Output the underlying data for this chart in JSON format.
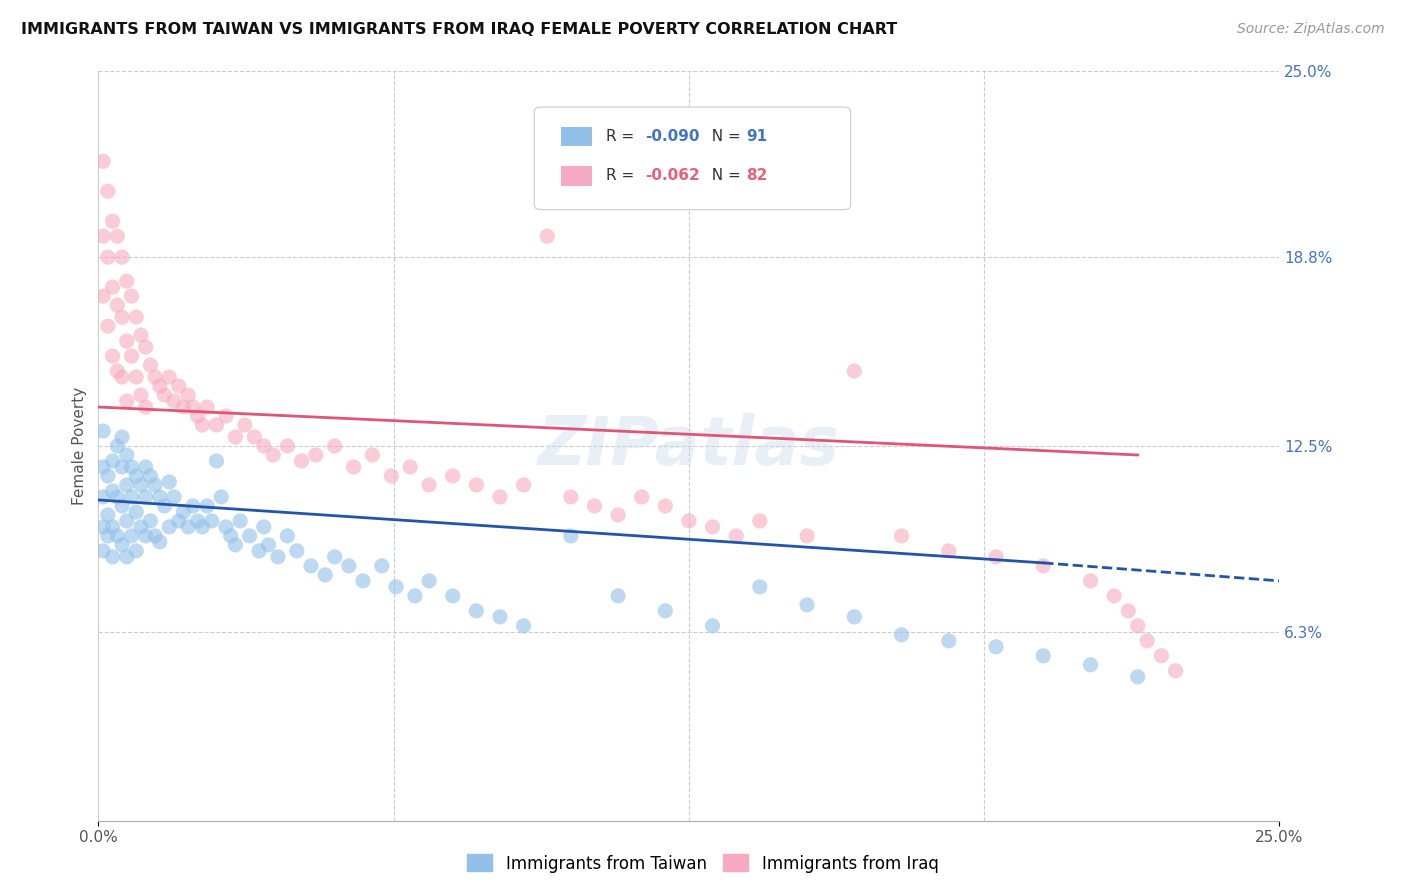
{
  "title": "IMMIGRANTS FROM TAIWAN VS IMMIGRANTS FROM IRAQ FEMALE POVERTY CORRELATION CHART",
  "source": "Source: ZipAtlas.com",
  "ylabel": "Female Poverty",
  "xlim": [
    0.0,
    0.25
  ],
  "ylim": [
    0.0,
    0.25
  ],
  "ytick_labels_right": [
    "25.0%",
    "18.8%",
    "12.5%",
    "6.3%"
  ],
  "ytick_values_right": [
    0.25,
    0.188,
    0.125,
    0.063
  ],
  "taiwan_color": "#92c0e8",
  "iraq_color": "#f5aabf",
  "taiwan_line_color": "#2255aa",
  "iraq_line_color": "#e05575",
  "taiwan_R": -0.09,
  "taiwan_N": 91,
  "iraq_R": -0.062,
  "iraq_N": 82,
  "taiwan_line_x0": 0.0,
  "taiwan_line_y0": 0.107,
  "taiwan_line_x1": 0.2,
  "taiwan_line_y1": 0.086,
  "taiwan_line_dash_x0": 0.2,
  "taiwan_line_dash_y0": 0.086,
  "taiwan_line_dash_x1": 0.25,
  "taiwan_line_dash_y1": 0.08,
  "iraq_line_x0": 0.0,
  "iraq_line_y0": 0.138,
  "iraq_line_x1": 0.22,
  "iraq_line_y1": 0.122,
  "taiwan_x": [
    0.001,
    0.001,
    0.001,
    0.001,
    0.001,
    0.002,
    0.002,
    0.002,
    0.003,
    0.003,
    0.003,
    0.003,
    0.004,
    0.004,
    0.004,
    0.005,
    0.005,
    0.005,
    0.005,
    0.006,
    0.006,
    0.006,
    0.006,
    0.007,
    0.007,
    0.007,
    0.008,
    0.008,
    0.008,
    0.009,
    0.009,
    0.01,
    0.01,
    0.01,
    0.011,
    0.011,
    0.012,
    0.012,
    0.013,
    0.013,
    0.014,
    0.015,
    0.015,
    0.016,
    0.017,
    0.018,
    0.019,
    0.02,
    0.021,
    0.022,
    0.023,
    0.024,
    0.025,
    0.026,
    0.027,
    0.028,
    0.029,
    0.03,
    0.032,
    0.034,
    0.035,
    0.036,
    0.038,
    0.04,
    0.042,
    0.045,
    0.048,
    0.05,
    0.053,
    0.056,
    0.06,
    0.063,
    0.067,
    0.07,
    0.075,
    0.08,
    0.085,
    0.09,
    0.1,
    0.11,
    0.12,
    0.13,
    0.14,
    0.15,
    0.16,
    0.17,
    0.18,
    0.19,
    0.2,
    0.21,
    0.22
  ],
  "taiwan_y": [
    0.118,
    0.108,
    0.098,
    0.09,
    0.13,
    0.115,
    0.102,
    0.095,
    0.12,
    0.11,
    0.098,
    0.088,
    0.125,
    0.108,
    0.095,
    0.128,
    0.118,
    0.105,
    0.092,
    0.122,
    0.112,
    0.1,
    0.088,
    0.118,
    0.108,
    0.095,
    0.115,
    0.103,
    0.09,
    0.112,
    0.098,
    0.118,
    0.108,
    0.095,
    0.115,
    0.1,
    0.112,
    0.095,
    0.108,
    0.093,
    0.105,
    0.113,
    0.098,
    0.108,
    0.1,
    0.103,
    0.098,
    0.105,
    0.1,
    0.098,
    0.105,
    0.1,
    0.12,
    0.108,
    0.098,
    0.095,
    0.092,
    0.1,
    0.095,
    0.09,
    0.098,
    0.092,
    0.088,
    0.095,
    0.09,
    0.085,
    0.082,
    0.088,
    0.085,
    0.08,
    0.085,
    0.078,
    0.075,
    0.08,
    0.075,
    0.07,
    0.068,
    0.065,
    0.095,
    0.075,
    0.07,
    0.065,
    0.078,
    0.072,
    0.068,
    0.062,
    0.06,
    0.058,
    0.055,
    0.052,
    0.048
  ],
  "iraq_x": [
    0.001,
    0.001,
    0.001,
    0.002,
    0.002,
    0.002,
    0.003,
    0.003,
    0.003,
    0.004,
    0.004,
    0.004,
    0.005,
    0.005,
    0.005,
    0.006,
    0.006,
    0.006,
    0.007,
    0.007,
    0.008,
    0.008,
    0.009,
    0.009,
    0.01,
    0.01,
    0.011,
    0.012,
    0.013,
    0.014,
    0.015,
    0.016,
    0.017,
    0.018,
    0.019,
    0.02,
    0.021,
    0.022,
    0.023,
    0.025,
    0.027,
    0.029,
    0.031,
    0.033,
    0.035,
    0.037,
    0.04,
    0.043,
    0.046,
    0.05,
    0.054,
    0.058,
    0.062,
    0.066,
    0.07,
    0.075,
    0.08,
    0.085,
    0.09,
    0.095,
    0.1,
    0.105,
    0.11,
    0.115,
    0.12,
    0.125,
    0.13,
    0.135,
    0.14,
    0.15,
    0.16,
    0.17,
    0.18,
    0.19,
    0.2,
    0.21,
    0.215,
    0.218,
    0.22,
    0.222,
    0.225,
    0.228
  ],
  "iraq_y": [
    0.22,
    0.195,
    0.175,
    0.21,
    0.188,
    0.165,
    0.2,
    0.178,
    0.155,
    0.195,
    0.172,
    0.15,
    0.188,
    0.168,
    0.148,
    0.18,
    0.16,
    0.14,
    0.175,
    0.155,
    0.168,
    0.148,
    0.162,
    0.142,
    0.158,
    0.138,
    0.152,
    0.148,
    0.145,
    0.142,
    0.148,
    0.14,
    0.145,
    0.138,
    0.142,
    0.138,
    0.135,
    0.132,
    0.138,
    0.132,
    0.135,
    0.128,
    0.132,
    0.128,
    0.125,
    0.122,
    0.125,
    0.12,
    0.122,
    0.125,
    0.118,
    0.122,
    0.115,
    0.118,
    0.112,
    0.115,
    0.112,
    0.108,
    0.112,
    0.195,
    0.108,
    0.105,
    0.102,
    0.108,
    0.105,
    0.1,
    0.098,
    0.095,
    0.1,
    0.095,
    0.15,
    0.095,
    0.09,
    0.088,
    0.085,
    0.08,
    0.075,
    0.07,
    0.065,
    0.06,
    0.055,
    0.05
  ]
}
